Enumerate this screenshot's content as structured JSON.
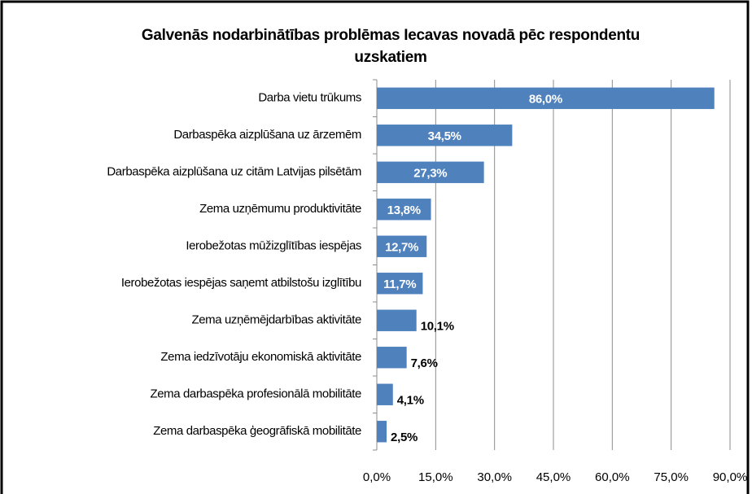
{
  "chart_data": {
    "type": "barh",
    "title": "Galvenās nodarbinātības problēmas Iecavas novadā pēc respondentu uzskatiem",
    "categories": [
      "Darba vietu trūkums",
      "Darbaspēka aizplūšana uz ārzemēm",
      "Darbaspēka aizplūšana uz citām Latvijas pilsētām",
      "Zema uzņēmumu produktivitāte",
      "Ierobežotas mūžizglītības iespējas",
      "Ierobežotas iespējas saņemt atbilstošu izglītību",
      "Zema uzņēmējdarbības aktivitāte",
      "Zema iedzīvotāju ekonomiskā aktivitāte",
      "Zema darbaspēka profesionālā mobilitāte",
      "Zema darbaspēka ģeogrāfiskā mobilitāte"
    ],
    "values": [
      86.0,
      34.5,
      27.3,
      13.8,
      12.7,
      11.7,
      10.1,
      7.6,
      4.1,
      2.5
    ],
    "value_labels": [
      "86,0%",
      "34,5%",
      "27,3%",
      "13,8%",
      "12,7%",
      "11,7%",
      "10,1%",
      "7,6%",
      "4,1%",
      "2,5%"
    ],
    "color": "#4f81bd",
    "xlim": [
      0,
      90
    ],
    "xticks": [
      {
        "value": 0,
        "label": "0,0%"
      },
      {
        "value": 15,
        "label": "15,0%"
      },
      {
        "value": 30,
        "label": "30,0%"
      },
      {
        "value": 45,
        "label": "45,0%"
      },
      {
        "value": 60,
        "label": "60,0%"
      },
      {
        "value": 75,
        "label": "75,0%"
      },
      {
        "value": 90,
        "label": "90,0%"
      }
    ],
    "grid": true
  }
}
